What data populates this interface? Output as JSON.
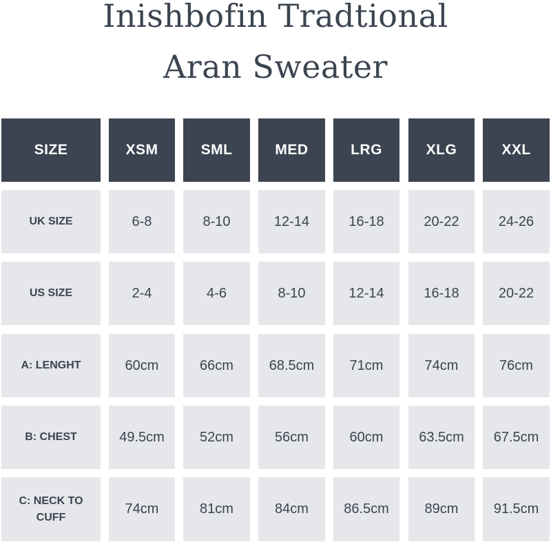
{
  "title": {
    "line1": "Inishbofin Tradtional",
    "line2": "Aran Sweater"
  },
  "table": {
    "header": [
      "SIZE",
      "XSM",
      "SML",
      "MED",
      "LRG",
      "XLG",
      "XXL"
    ],
    "rows": [
      {
        "label": "UK SIZE",
        "values": [
          "6-8",
          "8-10",
          "12-14",
          "16-18",
          "20-22",
          "24-26"
        ]
      },
      {
        "label": "US SIZE",
        "values": [
          "2-4",
          "4-6",
          "8-10",
          "12-14",
          "16-18",
          "20-22"
        ]
      },
      {
        "label": "A: LENGHT",
        "values": [
          "60cm",
          "66cm",
          "68.5cm",
          "71cm",
          "74cm",
          "76cm"
        ]
      },
      {
        "label": "B: CHEST",
        "values": [
          "49.5cm",
          "52cm",
          "56cm",
          "60cm",
          "63.5cm",
          "67.5cm"
        ]
      },
      {
        "label": "C: NECK TO CUFF",
        "values": [
          "74cm",
          "81cm",
          "84cm",
          "86.5cm",
          "89cm",
          "91.5cm"
        ]
      }
    ]
  },
  "colors": {
    "header_bg": "#3b4450",
    "header_text": "#ffffff",
    "cell_bg": "#e5e7ea",
    "text": "#3b4450"
  }
}
